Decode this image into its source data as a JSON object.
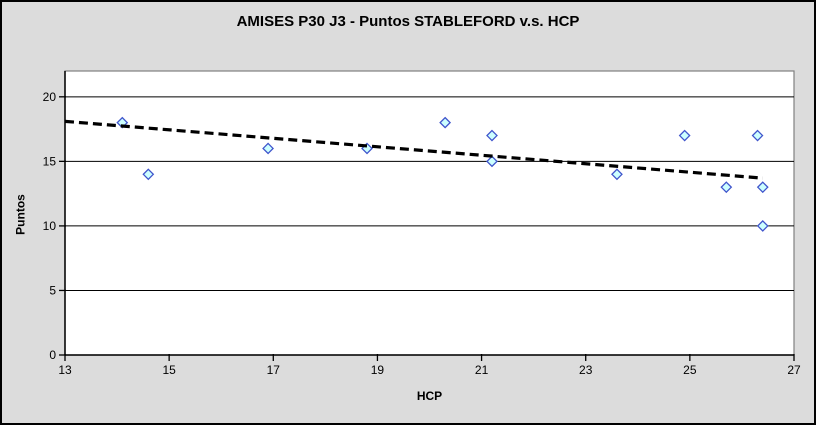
{
  "chart_data": {
    "type": "scatter",
    "title": "AMISES P30 J3 - Puntos STABLEFORD v.s. HCP",
    "xlabel": "HCP",
    "ylabel": "Puntos",
    "xlim": [
      13,
      27
    ],
    "ylim": [
      0,
      22
    ],
    "x_ticks": [
      13,
      15,
      17,
      19,
      21,
      23,
      25,
      27
    ],
    "y_ticks": [
      0,
      5,
      10,
      15,
      20
    ],
    "grid": "horizontal-major",
    "legend_position": "none",
    "series": [
      {
        "name": "Puntos STABLEFORD",
        "marker": "diamond",
        "points": [
          {
            "x": 14.1,
            "y": 18
          },
          {
            "x": 14.6,
            "y": 14
          },
          {
            "x": 16.9,
            "y": 16
          },
          {
            "x": 18.8,
            "y": 16
          },
          {
            "x": 20.3,
            "y": 18
          },
          {
            "x": 21.2,
            "y": 17
          },
          {
            "x": 21.2,
            "y": 15
          },
          {
            "x": 23.6,
            "y": 14
          },
          {
            "x": 24.9,
            "y": 17
          },
          {
            "x": 25.7,
            "y": 13
          },
          {
            "x": 26.3,
            "y": 17
          },
          {
            "x": 26.4,
            "y": 13
          },
          {
            "x": 26.4,
            "y": 10
          }
        ]
      }
    ],
    "trendline": {
      "style": "dashed",
      "x1": 13,
      "y1": 18.1,
      "x2": 26.4,
      "y2": 13.7
    },
    "colors": {
      "chart_background": "#dcdcdc",
      "plot_background": "#ffffff",
      "plot_border": "#808080",
      "gridline": "#000000",
      "axis_line": "#000000",
      "marker_fill": "#ccffff",
      "marker_stroke": "#4055cc",
      "trendline": "#000000",
      "text": "#000000",
      "frame_border": "#000000"
    }
  }
}
